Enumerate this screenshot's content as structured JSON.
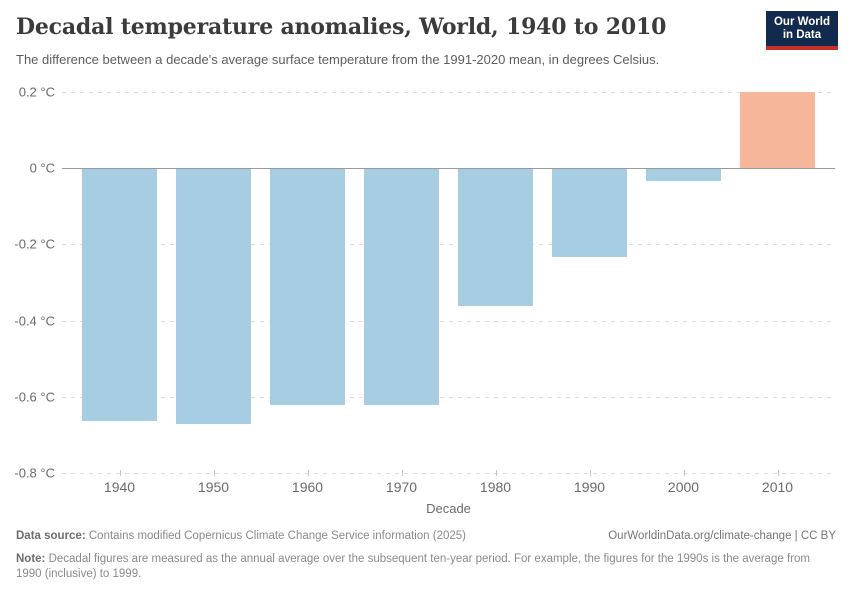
{
  "header": {
    "title": "Decadal temperature anomalies, World, 1940 to 2010",
    "subtitle": "The difference between a decade's average surface temperature from the 1991-2020 mean, in degrees Celsius.",
    "logo": {
      "line1": "Our World",
      "line2": "in Data",
      "bg_color": "#122a4d",
      "accent_color": "#c7302a"
    }
  },
  "chart_data": {
    "type": "bar",
    "title": "Decadal temperature anomalies, World, 1940 to 2010",
    "categories": [
      "1940",
      "1950",
      "1960",
      "1970",
      "1980",
      "1990",
      "2000",
      "2010"
    ],
    "values": [
      -0.66,
      -0.67,
      -0.62,
      -0.62,
      -0.36,
      -0.23,
      -0.03,
      0.2
    ],
    "unit": "°C",
    "xlabel": "Decade",
    "ylabel": "",
    "ylim": [
      -0.8,
      0.2
    ],
    "yticks": [
      0.2,
      0,
      -0.2,
      -0.4,
      -0.6,
      -0.8
    ],
    "ytick_labels": [
      "0.2 °C",
      "0 °C",
      "-0.2 °C",
      "-0.4 °C",
      "-0.6 °C",
      "-0.8 °C"
    ],
    "grid": "horizontal-dashed",
    "legend": "none",
    "negative_color": "#a7cde2",
    "positive_color": "#f6b69a",
    "zero_line_color": "#9a9a9a",
    "gridline_color": "#dcdcdc"
  },
  "footer": {
    "data_source_label": "Data source:",
    "data_source_text": " Contains modified Copernicus Climate Change Service information (2025)",
    "license_text": "OurWorldinData.org/climate-change | CC BY",
    "note_label": "Note:",
    "note_text": " Decadal figures are measured as the annual average over the subsequent ten-year period. For example, the figures for the 1990s is the average from 1990 (inclusive) to 1999."
  }
}
